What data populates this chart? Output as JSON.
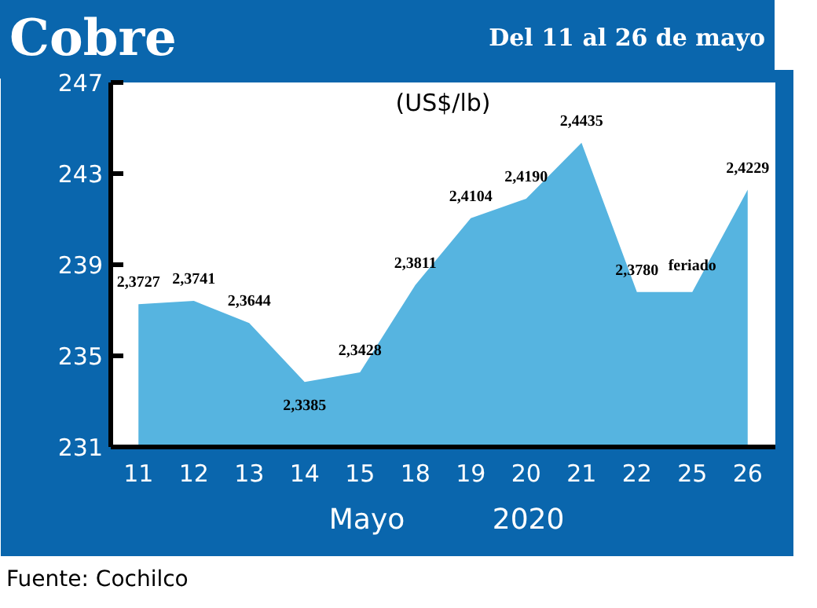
{
  "chart_data": {
    "type": "area",
    "title": "Cobre",
    "subtitle": "Del 11 al 26 de mayo",
    "ylabel": "(US$/lb)",
    "categories": [
      "11",
      "12",
      "13",
      "14",
      "15",
      "18",
      "19",
      "20",
      "21",
      "22",
      "25",
      "26"
    ],
    "values": [
      237.27,
      237.41,
      236.44,
      233.85,
      234.28,
      238.11,
      241.04,
      241.9,
      244.35,
      237.8,
      237.8,
      242.29
    ],
    "value_labels": [
      "2,3727",
      "2,3741",
      "2,3644",
      "2,3385",
      "2,3428",
      "2,3811",
      "2,4104",
      "2,4190",
      "2,4435",
      "2,3780",
      "feriado",
      "2,4229"
    ],
    "color": "#56b4e0",
    "ylim": [
      231,
      247
    ],
    "yticks": [
      231,
      235,
      239,
      243,
      247
    ],
    "grid": false,
    "annotations": [
      "Mayo",
      "2020",
      "Fuente: Cochilco"
    ]
  }
}
